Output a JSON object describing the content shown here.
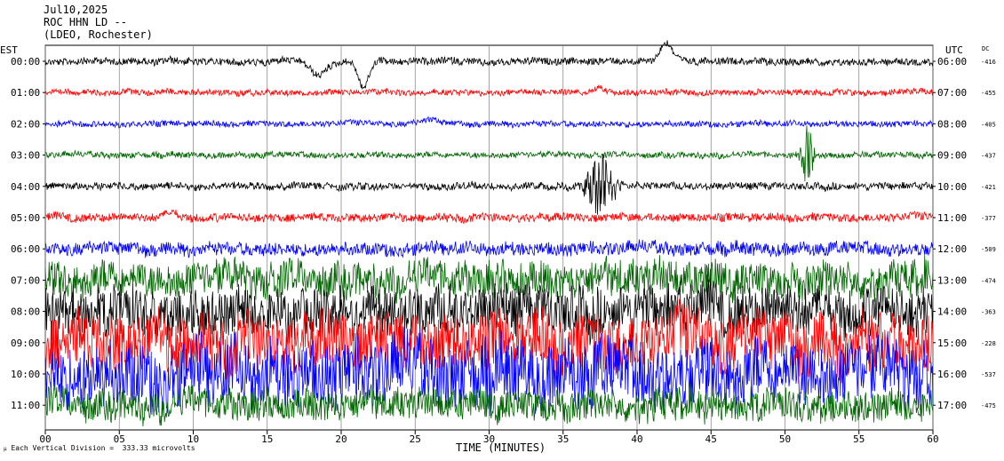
{
  "header": {
    "date": "Jul10,2025",
    "station": "ROC HHN LD --",
    "network": "(LDEO, Rochester)"
  },
  "labels": {
    "left_tz": "EST",
    "right_tz": "UTC",
    "dc": "DC",
    "xlabel": "TIME (MINUTES)",
    "footnote": "Each Vertical Division =  333.33 microvolts"
  },
  "colors": {
    "black": "#000000",
    "red": "#ff0000",
    "blue": "#0000ff",
    "green": "#006400",
    "grid": "#808080"
  },
  "chart_data": {
    "type": "line",
    "xlim": [
      0,
      60
    ],
    "x_ticks": [
      "00",
      "05",
      "10",
      "15",
      "20",
      "25",
      "30",
      "35",
      "40",
      "45",
      "50",
      "55",
      "60"
    ],
    "grid": true,
    "series": [
      {
        "est": "00:00",
        "utc": "06:00",
        "dc": "-416",
        "color": "black",
        "level": 0.6,
        "events": [
          {
            "t": 18.5,
            "amp": 2.4,
            "w": 0.8,
            "sign": 1
          },
          {
            "t": 21.5,
            "amp": 4.5,
            "w": 0.5,
            "sign": 1
          },
          {
            "t": 42,
            "amp": 3.0,
            "w": 0.6,
            "sign": -1
          }
        ]
      },
      {
        "est": "01:00",
        "utc": "07:00",
        "dc": "-455",
        "color": "red",
        "level": 0.5,
        "events": [
          {
            "t": 37.5,
            "amp": 0.8,
            "w": 0.6,
            "sign": -1
          }
        ]
      },
      {
        "est": "02:00",
        "utc": "08:00",
        "dc": "-405",
        "color": "blue",
        "level": 0.5,
        "events": [
          {
            "t": 26,
            "amp": 0.6,
            "w": 0.8,
            "sign": -1
          }
        ]
      },
      {
        "est": "03:00",
        "utc": "09:00",
        "dc": "-437",
        "color": "green",
        "level": 0.5,
        "events": [
          {
            "t": 51.5,
            "amp": 5.0,
            "w": 0.5,
            "sign": 0,
            "burst": true
          }
        ]
      },
      {
        "est": "04:00",
        "utc": "10:00",
        "dc": "-421",
        "color": "black",
        "level": 0.6,
        "events": [
          {
            "t": 37.5,
            "amp": 5.5,
            "w": 1.0,
            "sign": 0,
            "burst": true
          }
        ]
      },
      {
        "est": "05:00",
        "utc": "11:00",
        "dc": "-377",
        "color": "red",
        "level": 0.7,
        "events": [
          {
            "t": 8.5,
            "amp": 0.8,
            "w": 0.6,
            "sign": -1
          }
        ]
      },
      {
        "est": "06:00",
        "utc": "12:00",
        "dc": "-509",
        "color": "blue",
        "level": 1.1,
        "events": []
      },
      {
        "est": "07:00",
        "utc": "13:00",
        "dc": "-474",
        "color": "green",
        "level": 3.0,
        "events": []
      },
      {
        "est": "08:00",
        "utc": "14:00",
        "dc": "-363",
        "color": "black",
        "level": 4.0,
        "events": []
      },
      {
        "est": "09:00",
        "utc": "15:00",
        "dc": "-228",
        "color": "red",
        "level": 5.0,
        "events": []
      },
      {
        "est": "10:00",
        "utc": "16:00",
        "dc": "-537",
        "color": "blue",
        "level": 5.5,
        "events": []
      },
      {
        "est": "11:00",
        "utc": "17:00",
        "dc": "-475",
        "color": "green",
        "level": 2.6,
        "events": []
      }
    ]
  }
}
